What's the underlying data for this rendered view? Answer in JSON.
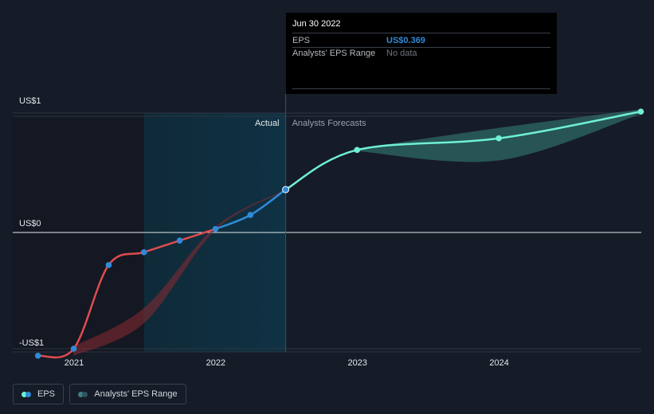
{
  "tooltip": {
    "date": "Jun 30 2022",
    "rows": [
      {
        "label": "EPS",
        "value": "US$0.369"
      },
      {
        "label": "Analysts' EPS Range",
        "value": "No data"
      }
    ]
  },
  "legend": {
    "eps_label": "EPS",
    "range_label": "Analysts' EPS Range"
  },
  "colors": {
    "background": "#151b27",
    "actual_early": "#e04b4f",
    "actual_late": "#2f8bd8",
    "forecast": "#6ff0d2",
    "band": "#3e9b8e",
    "past_band": "#8c2a32"
  },
  "chart_data": {
    "type": "line",
    "title": "",
    "xlabel": "",
    "ylabel": "",
    "y_axis_labels": [
      "US$1",
      "US$0",
      "-US$1"
    ],
    "y_ticks": [
      1,
      0,
      -1
    ],
    "ylim": [
      -1.1,
      1.1
    ],
    "x_ticks": [
      "2021",
      "2022",
      "2023",
      "2024"
    ],
    "xlim": [
      "2020-08-15",
      "2024-12-31"
    ],
    "divider_date": "2022-06-30",
    "divider_labels": {
      "left": "Actual",
      "right": "Analysts Forecasts"
    },
    "grid": true,
    "series": [
      {
        "name": "EPS",
        "kind": "actual",
        "points": [
          {
            "x": "2020-09-30",
            "y": -1.06
          },
          {
            "x": "2020-12-31",
            "y": -1.0
          },
          {
            "x": "2021-03-31",
            "y": -0.28
          },
          {
            "x": "2021-06-30",
            "y": -0.17
          },
          {
            "x": "2021-09-30",
            "y": -0.07
          },
          {
            "x": "2021-12-31",
            "y": 0.03
          },
          {
            "x": "2022-03-31",
            "y": 0.15
          },
          {
            "x": "2022-06-30",
            "y": 0.369
          }
        ]
      },
      {
        "name": "Analysts Forecasts",
        "kind": "forecast",
        "points": [
          {
            "x": "2022-06-30",
            "y": 0.369
          },
          {
            "x": "2022-12-31",
            "y": 0.71
          },
          {
            "x": "2023-12-31",
            "y": 0.81
          },
          {
            "x": "2024-12-31",
            "y": 1.04
          }
        ]
      }
    ],
    "range_band": {
      "name": "Analysts' EPS Range",
      "high": [
        {
          "x": "2022-12-31",
          "y": 0.72
        },
        {
          "x": "2023-12-31",
          "y": 0.9
        },
        {
          "x": "2024-12-31",
          "y": 1.06
        }
      ],
      "low": [
        {
          "x": "2022-12-31",
          "y": 0.7
        },
        {
          "x": "2023-12-31",
          "y": 0.62
        },
        {
          "x": "2024-12-31",
          "y": 1.02
        }
      ]
    },
    "past_band": {
      "high": [
        {
          "x": "2020-12-31",
          "y": -0.98
        },
        {
          "x": "2021-06-30",
          "y": -0.65
        },
        {
          "x": "2021-12-31",
          "y": 0.05
        },
        {
          "x": "2022-06-30",
          "y": 0.37
        }
      ],
      "low": [
        {
          "x": "2020-12-31",
          "y": -1.06
        },
        {
          "x": "2021-06-30",
          "y": -0.78
        },
        {
          "x": "2021-12-31",
          "y": 0.02
        },
        {
          "x": "2022-06-30",
          "y": 0.36
        }
      ]
    }
  }
}
